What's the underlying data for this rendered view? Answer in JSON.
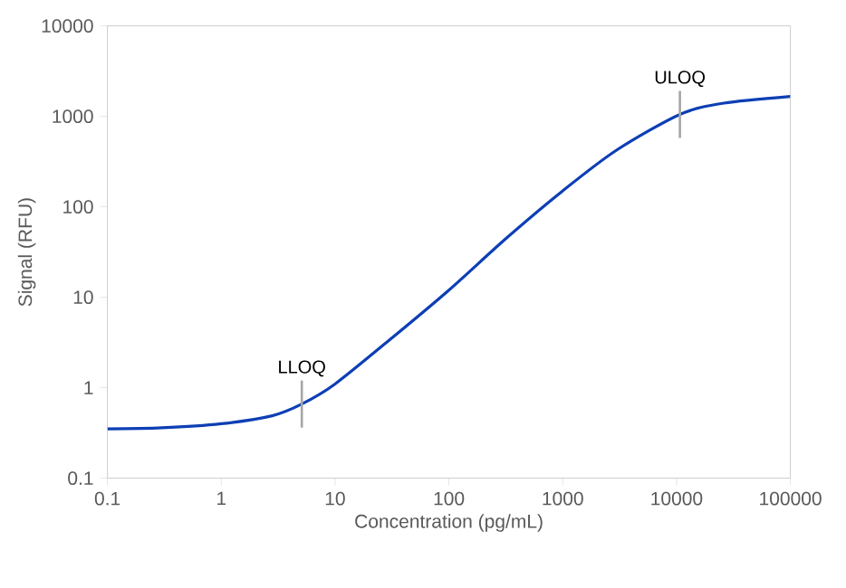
{
  "chart_data": {
    "type": "line",
    "xlabel": "Concentration (pg/mL)",
    "ylabel": "Signal (RFU)",
    "x": [
      0.1,
      0.3,
      1,
      2.8,
      5.1,
      10,
      32,
      100,
      320,
      1000,
      2950,
      10700,
      26000,
      100000
    ],
    "series": [
      {
        "color": "#0d3fb5",
        "values": [
          0.35,
          0.36,
          0.4,
          0.49,
          0.66,
          1.1,
          3.6,
          12,
          45,
          150,
          420,
          1050,
          1400,
          1660
        ]
      }
    ],
    "annotations": [
      {
        "text": "LLOQ",
        "x": 5.1,
        "y": 0.66
      },
      {
        "text": "ULOQ",
        "x": 10700,
        "y": 1050
      }
    ],
    "log": "xy",
    "xlim": [
      0.1,
      100000
    ],
    "ylim": [
      0.1,
      10000
    ],
    "xticks": [
      0.1,
      1,
      10,
      100,
      1000,
      10000,
      100000
    ],
    "yticks": [
      0.1,
      1,
      10,
      100,
      1000,
      10000
    ]
  }
}
